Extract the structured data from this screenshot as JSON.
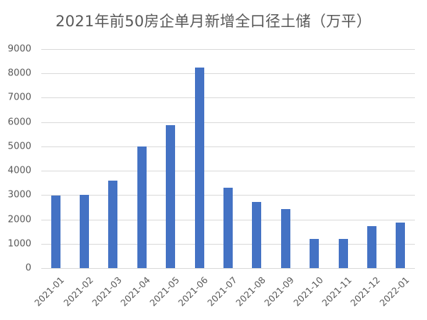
{
  "chart_data": {
    "type": "bar",
    "title": "2021年前50房企单月新增全口径土储（万平）",
    "xlabel": "",
    "ylabel": "",
    "categories": [
      "2021-01",
      "2021-02",
      "2021-03",
      "2021-04",
      "2021-05",
      "2021-06",
      "2021-07",
      "2021-08",
      "2021-09",
      "2021-10",
      "2021-11",
      "2021-12",
      "2022-01"
    ],
    "values": [
      2970,
      3000,
      3600,
      5000,
      5880,
      8240,
      3300,
      2730,
      2430,
      1210,
      1190,
      1710,
      1870
    ],
    "ylim": [
      0,
      9000
    ],
    "yticks": [
      0,
      1000,
      2000,
      3000,
      4000,
      5000,
      6000,
      7000,
      8000,
      9000
    ],
    "grid": true,
    "legend": null,
    "colors": {
      "bar": "#4472C4",
      "grid": "#D9D9D9",
      "text": "#595959"
    }
  }
}
